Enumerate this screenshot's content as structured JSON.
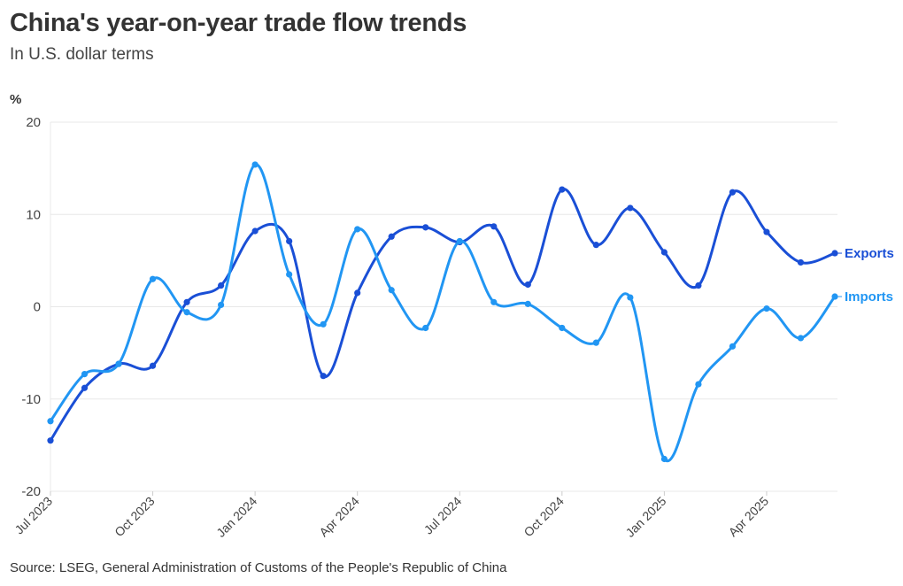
{
  "chart_data": {
    "type": "line",
    "title": "China's year-on-year trade flow trends",
    "subtitle": "In U.S. dollar terms",
    "ylabel": "%",
    "xlabel": "",
    "ylim": [
      -20,
      20
    ],
    "yticks": [
      20,
      10,
      0,
      -10,
      -20
    ],
    "grid": true,
    "x": [
      "Jul 2023",
      "Aug 2023",
      "Sep 2023",
      "Oct 2023",
      "Nov 2023",
      "Dec 2023",
      "Jan 2024",
      "Feb 2024",
      "Mar 2024",
      "Apr 2024",
      "May 2024",
      "Jun 2024",
      "Jul 2024",
      "Aug 2024",
      "Sep 2024",
      "Oct 2024",
      "Nov 2024",
      "Dec 2024",
      "Jan 2025",
      "Feb 2025",
      "Mar 2025",
      "Apr 2025",
      "May 2025",
      "Jun 2025"
    ],
    "xtick_labels": [
      "Jul 2023",
      "Oct 2023",
      "Jan 2024",
      "Apr 2024",
      "Jul 2024",
      "Oct 2024",
      "Jan 2025",
      "Apr 2025"
    ],
    "legend": "inline-right",
    "series": [
      {
        "name": "Exports",
        "color": "#1a4fd6",
        "values": [
          -14.5,
          -8.8,
          -6.2,
          -6.4,
          0.5,
          2.3,
          8.2,
          7.1,
          -7.5,
          1.5,
          7.6,
          8.6,
          7.0,
          8.7,
          2.4,
          12.7,
          6.7,
          10.7,
          5.9,
          2.3,
          12.4,
          8.1,
          4.8,
          5.8
        ]
      },
      {
        "name": "Imports",
        "color": "#2196f3",
        "values": [
          -12.4,
          -7.3,
          -6.2,
          3.0,
          -0.6,
          0.2,
          15.4,
          3.5,
          -1.9,
          8.4,
          1.8,
          -2.3,
          7.1,
          0.5,
          0.3,
          -2.3,
          -3.9,
          1.0,
          -16.5,
          -8.4,
          -4.3,
          -0.2,
          -3.4,
          1.1
        ]
      }
    ],
    "source": "Source: LSEG, General Administration of Customs of the People's Republic of China"
  }
}
